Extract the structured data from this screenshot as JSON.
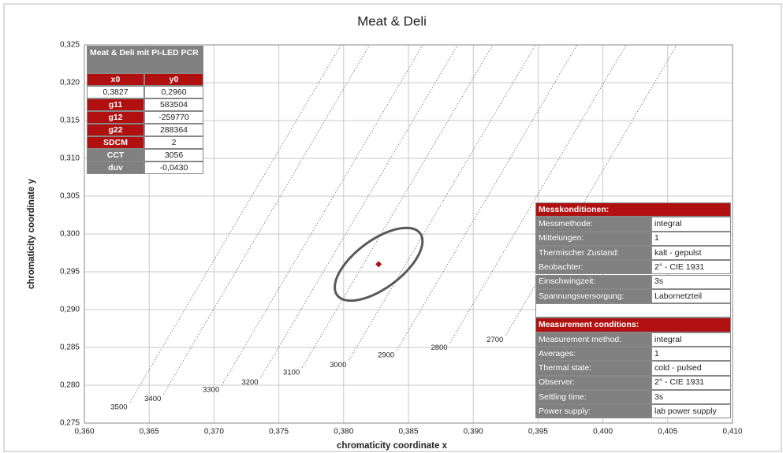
{
  "chart_data": {
    "type": "scatter",
    "title": "Meat & Deli",
    "x_label": "chromaticity coordinate x",
    "y_label": "chromaticity coordinate y",
    "xlim": [
      0.36,
      0.41
    ],
    "xticks": [
      {
        "value": 0.36,
        "label": "0,360"
      },
      {
        "value": 0.365,
        "label": "0,365"
      },
      {
        "value": 0.37,
        "label": "0,370"
      },
      {
        "value": 0.375,
        "label": "0,375"
      },
      {
        "value": 0.38,
        "label": "0,380"
      },
      {
        "value": 0.385,
        "label": "0,385"
      },
      {
        "value": 0.39,
        "label": "0,390"
      },
      {
        "value": 0.395,
        "label": "0,395"
      },
      {
        "value": 0.4,
        "label": "0,400"
      },
      {
        "value": 0.405,
        "label": "0,405"
      },
      {
        "value": 0.41,
        "label": "0,410"
      }
    ],
    "ylim": [
      0.275,
      0.325
    ],
    "yticks": [
      {
        "value": 0.275,
        "label": "0,275"
      },
      {
        "value": 0.28,
        "label": "0,280"
      },
      {
        "value": 0.285,
        "label": "0,285"
      },
      {
        "value": 0.29,
        "label": "0,290"
      },
      {
        "value": 0.295,
        "label": "0,295"
      },
      {
        "value": 0.3,
        "label": "0,300"
      },
      {
        "value": 0.305,
        "label": "0,305"
      },
      {
        "value": 0.31,
        "label": "0,310"
      },
      {
        "value": 0.315,
        "label": "0,315"
      },
      {
        "value": 0.32,
        "label": "0,320"
      },
      {
        "value": 0.325,
        "label": "0,325"
      }
    ],
    "grid": true,
    "point_color": "#b01010",
    "ellipse_color": "#595959",
    "isotherms": [
      {
        "cct": 3500,
        "x": 0.3635,
        "y": 0.2777,
        "x2": 0.3798,
        "y2": 0.325
      },
      {
        "cct": 3400,
        "x": 0.3661,
        "y": 0.2788,
        "x2": 0.382,
        "y2": 0.325
      },
      {
        "cct": 3300,
        "x": 0.3706,
        "y": 0.28,
        "x2": 0.3861,
        "y2": 0.325
      },
      {
        "cct": 3200,
        "x": 0.3736,
        "y": 0.281,
        "x2": 0.3888,
        "y2": 0.325
      },
      {
        "cct": 3100,
        "x": 0.3768,
        "y": 0.2823,
        "x2": 0.3915,
        "y2": 0.325
      },
      {
        "cct": 3000,
        "x": 0.3804,
        "y": 0.2833,
        "x2": 0.3948,
        "y2": 0.325
      },
      {
        "cct": 2900,
        "x": 0.3841,
        "y": 0.2846,
        "x2": 0.398,
        "y2": 0.325
      },
      {
        "cct": 2800,
        "x": 0.3882,
        "y": 0.2856,
        "x2": 0.4018,
        "y2": 0.325
      },
      {
        "cct": 2700,
        "x": 0.3925,
        "y": 0.2866,
        "x2": 0.4057,
        "y2": 0.325
      }
    ],
    "params": {
      "title": "Meat & Deli mit PI-LED PCR",
      "rows": [
        {
          "name": "x0",
          "value": 0.3827,
          "label": "0,3827"
        },
        {
          "name": "y0",
          "value": 0.296,
          "label": "0,2960"
        },
        {
          "name": "g11",
          "value": 583504
        },
        {
          "name": "g12",
          "value": -259770
        },
        {
          "name": "g22",
          "value": 288364
        },
        {
          "name": "SDCM",
          "value": 2
        },
        {
          "name": "CCT",
          "value": 3056
        },
        {
          "name": "duv",
          "value": -0.043,
          "label": "-0,0430"
        }
      ]
    }
  },
  "conditions": [
    {
      "title": "Messkonditionen:",
      "rows": [
        [
          "Messmethode:",
          "integral"
        ],
        [
          "Mittelungen:",
          "1"
        ],
        [
          "Thermischer Zustand:",
          "kalt - gepulst"
        ],
        [
          "Beobachter:",
          "2° - CIE 1931"
        ],
        [
          "Einschwingzeit:",
          "3s"
        ],
        [
          "Spannungsversorgung:",
          "Labornetzteil"
        ]
      ]
    },
    {
      "title": "Measurement conditions:",
      "rows": [
        [
          "Measurement method:",
          "integral"
        ],
        [
          "Averages:",
          "1"
        ],
        [
          "Thermal state:",
          "cold - pulsed"
        ],
        [
          "Observer:",
          "2° - CIE 1931"
        ],
        [
          "Settling time:",
          "3s"
        ],
        [
          "Power supply:",
          "lab power supply"
        ]
      ]
    }
  ]
}
